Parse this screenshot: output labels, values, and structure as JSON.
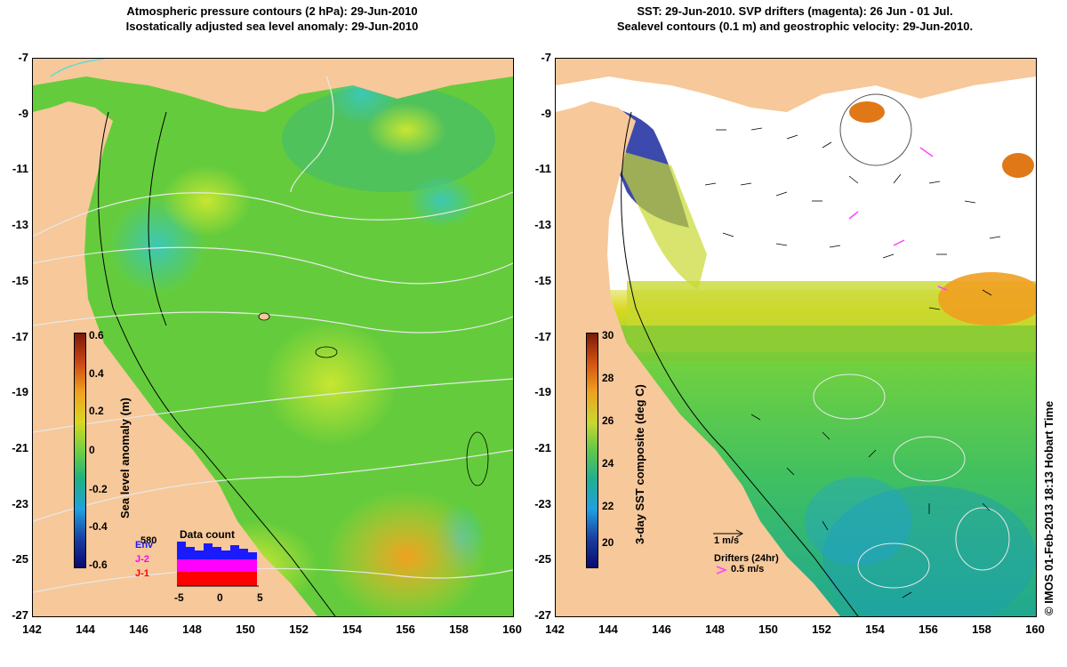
{
  "left_panel": {
    "title_line1": "Atmospheric pressure contours (2 hPa): 29-Jun-2010",
    "title_line2": "Isostatically adjusted sea level anomaly: 29-Jun-2010",
    "colorbar_label": "Sea level anomaly (m)",
    "colorbar_ticks": [
      "0.6",
      "0.4",
      "0.2",
      "0",
      "-0.2",
      "-0.4",
      "-0.6"
    ],
    "data_count": {
      "title": "Data count",
      "max_label": "580",
      "series": [
        "Env",
        "J-2",
        "J-1"
      ],
      "series_colors": [
        "#1a1aff",
        "#ff00ff",
        "#ff0000"
      ],
      "x_ticks": [
        "-5",
        "0",
        "5"
      ]
    }
  },
  "right_panel": {
    "title_line1": "SST: 29-Jun-2010. SVP drifters (magenta): 26 Jun - 01 Jul.",
    "title_line2": "Sealevel contours (0.1 m) and geostrophic velocity: 29-Jun-2010.",
    "colorbar_label": "3-day SST composite (deg C)",
    "colorbar_ticks": [
      "30",
      "28",
      "26",
      "24",
      "22",
      "20"
    ],
    "velocity_scale": "1 m/s",
    "drifters_label": "Drifters (24hr)",
    "drifters_scale": "0.5 m/s"
  },
  "axes": {
    "y_ticks": [
      "-7",
      "-9",
      "-11",
      "-13",
      "-15",
      "-17",
      "-19",
      "-21",
      "-23",
      "-25",
      "-27"
    ],
    "x_ticks": [
      "142",
      "144",
      "146",
      "148",
      "150",
      "152",
      "154",
      "156",
      "158",
      "160"
    ]
  },
  "credit": "© IMOS 01-Feb-2013 18:13 Hobart Time",
  "colors": {
    "land": "#f7c89a",
    "ocean": "#6ad23a",
    "drifter": "#ff44ff"
  }
}
